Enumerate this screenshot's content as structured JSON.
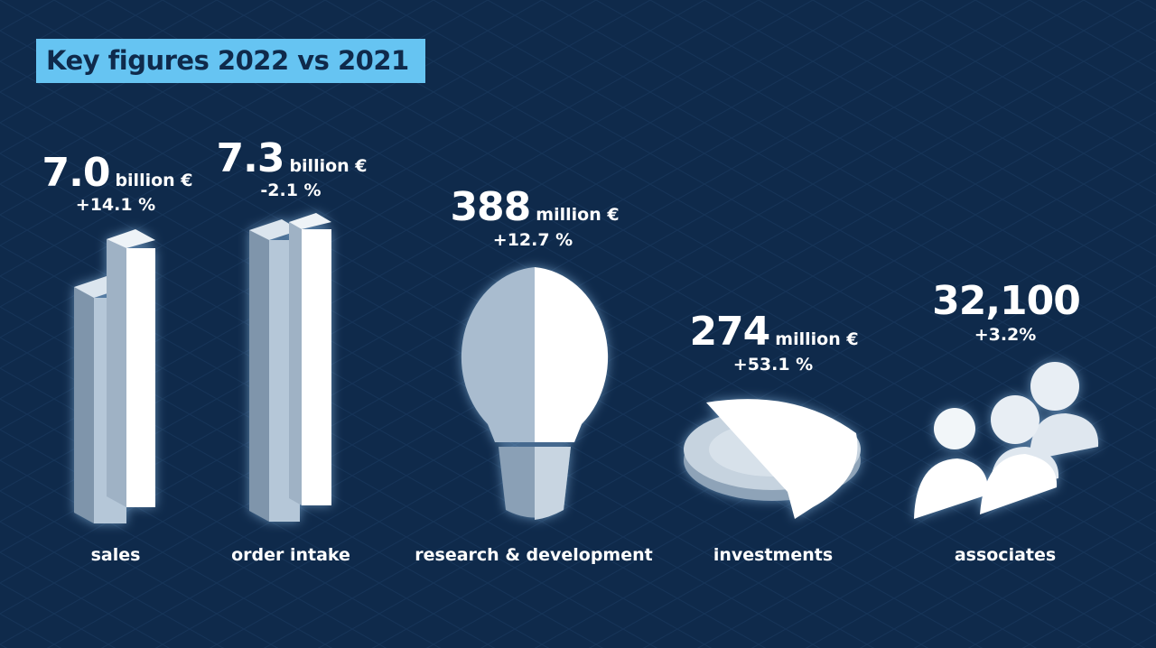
{
  "title": "Key figures 2022 vs 2021",
  "figures": [
    {
      "value": "7.0",
      "unit": "billion €",
      "change": "+14.1 %",
      "label": "sales"
    },
    {
      "value": "7.3",
      "unit": "billion €",
      "change": "-2.1 %",
      "label": "order intake"
    },
    {
      "value": "388",
      "unit": "million €",
      "change": "+12.7 %",
      "label": "research & development"
    },
    {
      "value": "274",
      "unit": "million €",
      "change": "+53.1 %",
      "label": "investments"
    },
    {
      "value": "32,100",
      "change": "+3.2%",
      "label": "associates"
    }
  ]
}
